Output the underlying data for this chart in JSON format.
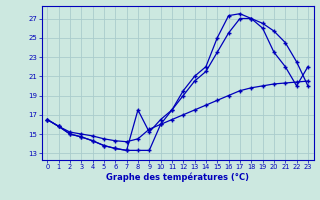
{
  "title": "Graphe des températures (°C)",
  "bg_color": "#cce8e0",
  "grid_color": "#aacccc",
  "line_color": "#0000bb",
  "x_ticks": [
    0,
    1,
    2,
    3,
    4,
    5,
    6,
    7,
    8,
    9,
    10,
    11,
    12,
    13,
    14,
    15,
    16,
    17,
    18,
    19,
    20,
    21,
    22,
    23
  ],
  "y_ticks": [
    13,
    15,
    17,
    19,
    21,
    23,
    25,
    27
  ],
  "xlim": [
    -0.5,
    23.5
  ],
  "ylim": [
    12.3,
    28.3
  ],
  "line1_x": [
    0,
    1,
    2,
    3,
    4,
    5,
    6,
    7,
    8,
    9,
    10,
    11,
    12,
    13,
    14,
    15,
    16,
    17,
    18,
    19,
    20,
    21,
    22,
    23
  ],
  "line1_y": [
    16.5,
    15.8,
    15.0,
    14.7,
    14.3,
    13.8,
    13.5,
    13.3,
    17.5,
    15.2,
    16.5,
    17.5,
    19.5,
    21.0,
    22.0,
    25.0,
    27.3,
    27.5,
    27.0,
    26.5,
    25.7,
    24.5,
    22.5,
    20.0
  ],
  "line2_x": [
    0,
    1,
    2,
    3,
    4,
    5,
    6,
    7,
    8,
    9,
    10,
    11,
    12,
    13,
    14,
    15,
    16,
    17,
    18,
    19,
    20,
    21,
    22,
    23
  ],
  "line2_y": [
    16.5,
    15.8,
    15.0,
    14.7,
    14.3,
    13.8,
    13.5,
    13.3,
    13.3,
    13.3,
    16.0,
    17.5,
    19.0,
    20.5,
    21.5,
    23.5,
    25.5,
    27.0,
    27.0,
    26.0,
    23.5,
    22.0,
    20.0,
    22.0
  ],
  "line3_x": [
    0,
    1,
    2,
    3,
    4,
    5,
    6,
    7,
    8,
    9,
    10,
    11,
    12,
    13,
    14,
    15,
    16,
    17,
    18,
    19,
    20,
    21,
    22,
    23
  ],
  "line3_y": [
    16.5,
    15.8,
    15.2,
    15.0,
    14.8,
    14.5,
    14.3,
    14.2,
    14.5,
    15.5,
    16.0,
    16.5,
    17.0,
    17.5,
    18.0,
    18.5,
    19.0,
    19.5,
    19.8,
    20.0,
    20.2,
    20.3,
    20.4,
    20.5
  ]
}
